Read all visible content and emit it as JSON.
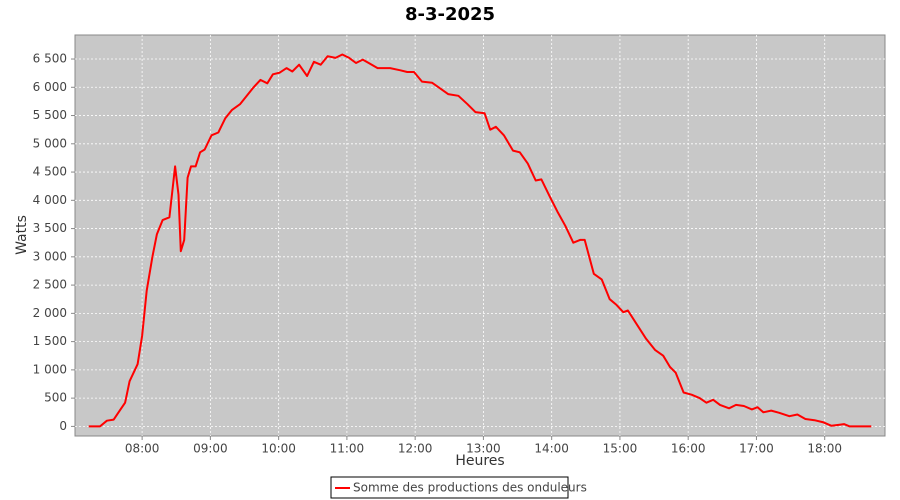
{
  "chart_data": {
    "type": "line",
    "title": "8-3-2025",
    "x_label": "Heures",
    "y_label": "Watts",
    "xlim": [
      "07:01",
      "18:53"
    ],
    "xticks": [
      "08:00",
      "09:00",
      "10:00",
      "11:00",
      "12:00",
      "13:00",
      "14:00",
      "15:00",
      "16:00",
      "17:00",
      "18:00"
    ],
    "ylim": [
      -170,
      6925
    ],
    "yticks": [
      0,
      500,
      {
        "value": 1000,
        "label": "1 000"
      },
      {
        "value": 1500,
        "label": "1 500"
      },
      {
        "value": 2000,
        "label": "2 000"
      },
      {
        "value": 2500,
        "label": "2 500"
      },
      {
        "value": 3000,
        "label": "3 000"
      },
      {
        "value": 3500,
        "label": "3 500"
      },
      {
        "value": 4000,
        "label": "4 000"
      },
      {
        "value": 4500,
        "label": "4 500"
      },
      {
        "value": 5000,
        "label": "5 000"
      },
      {
        "value": 5500,
        "label": "5 500"
      },
      {
        "value": 6000,
        "label": "6 000"
      },
      {
        "value": 6500,
        "label": "6 500"
      }
    ],
    "grid": true,
    "legend": "bottom",
    "x": [
      "07:13",
      "07:23",
      "07:29",
      "07:35",
      "07:41",
      "07:45",
      "07:49",
      "07:56",
      "08:00",
      "08:04",
      "08:09",
      "08:13",
      "08:18",
      "08:24",
      "08:29",
      "08:32",
      "08:34",
      "08:37",
      "08:40",
      "08:43",
      "08:47",
      "08:51",
      "08:55",
      "09:01",
      "09:07",
      "09:13",
      "09:19",
      "09:26",
      "09:32",
      "09:38",
      "09:44",
      "09:50",
      "09:55",
      "10:01",
      "10:07",
      "10:12",
      "10:18",
      "10:25",
      "10:31",
      "10:37",
      "10:43",
      "10:50",
      "10:56",
      "11:02",
      "11:08",
      "11:14",
      "11:20",
      "11:27",
      "11:38",
      "11:47",
      "11:53",
      "11:59",
      "12:06",
      "12:15",
      "12:22",
      "12:29",
      "12:38",
      "12:46",
      "12:53",
      "13:01",
      "13:06",
      "13:11",
      "13:18",
      "13:26",
      "13:32",
      "13:39",
      "13:46",
      "13:51",
      "13:58",
      "14:05",
      "14:12",
      "14:19",
      "14:25",
      "14:29",
      "14:37",
      "14:44",
      "14:51",
      "14:57",
      "15:03",
      "15:07",
      "15:15",
      "15:23",
      "15:31",
      "15:38",
      "15:44",
      "15:49",
      "15:56",
      "16:03",
      "16:10",
      "16:16",
      "16:22",
      "16:28",
      "16:36",
      "16:42",
      "16:49",
      "16:56",
      "17:01",
      "17:06",
      "17:13",
      "17:20",
      "17:29",
      "17:36",
      "17:43",
      "17:51",
      "17:59",
      "18:06",
      "18:13",
      "18:17",
      "18:22",
      "18:41"
    ],
    "series": [
      {
        "name": "Somme des productions des onduleurs",
        "color": "#ff0000",
        "values": [
          0,
          0,
          100,
          120,
          300,
          420,
          800,
          1100,
          1600,
          2400,
          3000,
          3400,
          3650,
          3700,
          4600,
          4100,
          3100,
          3300,
          4400,
          4600,
          4600,
          4850,
          4900,
          5150,
          5200,
          5450,
          5600,
          5700,
          5850,
          6000,
          6130,
          6070,
          6230,
          6260,
          6340,
          6280,
          6400,
          6200,
          6450,
          6400,
          6550,
          6520,
          6580,
          6520,
          6430,
          6490,
          6420,
          6340,
          6340,
          6300,
          6270,
          6270,
          6100,
          6080,
          5980,
          5880,
          5850,
          5700,
          5560,
          5540,
          5250,
          5300,
          5150,
          4880,
          4850,
          4650,
          4350,
          4370,
          4080,
          3800,
          3550,
          3250,
          3300,
          3300,
          2700,
          2600,
          2250,
          2150,
          2020,
          2050,
          1800,
          1550,
          1350,
          1250,
          1050,
          950,
          600,
          560,
          500,
          420,
          470,
          380,
          320,
          380,
          360,
          300,
          340,
          250,
          280,
          240,
          180,
          210,
          130,
          110,
          70,
          10,
          30,
          40,
          0,
          0
        ]
      }
    ]
  }
}
